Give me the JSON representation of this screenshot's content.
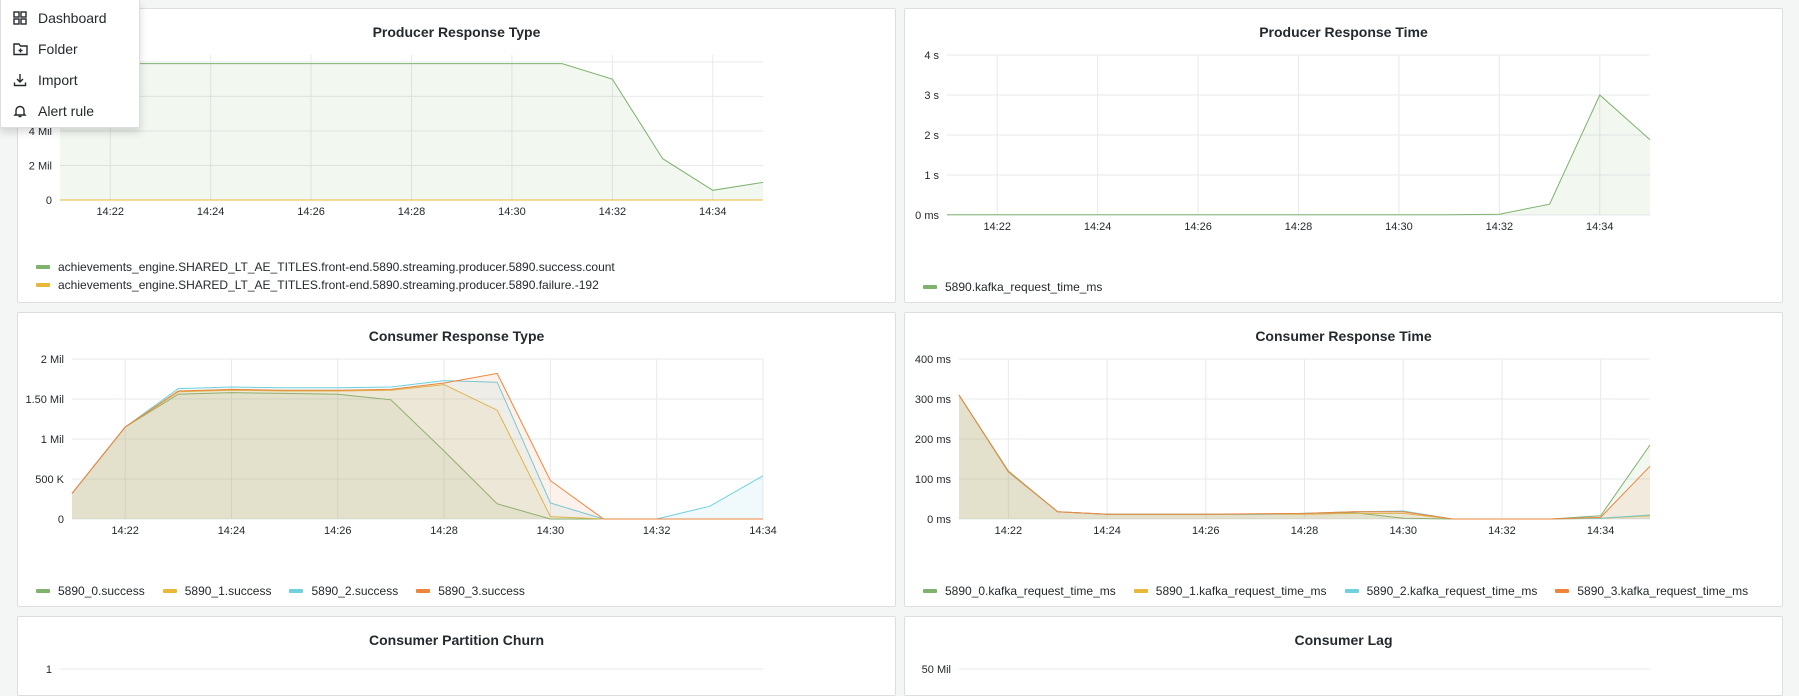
{
  "menu": {
    "items": [
      {
        "label": "Dashboard",
        "icon": "apps-icon"
      },
      {
        "label": "Folder",
        "icon": "folder-plus-icon"
      },
      {
        "label": "Import",
        "icon": "import-icon"
      },
      {
        "label": "Alert rule",
        "icon": "bell-icon"
      }
    ]
  },
  "panels": {
    "producer_response_type": {
      "title": "Producer Response Type"
    },
    "producer_response_time": {
      "title": "Producer Response Time"
    },
    "consumer_response_type": {
      "title": "Consumer Response Type"
    },
    "consumer_response_time": {
      "title": "Consumer Response Time"
    },
    "consumer_partition_churn": {
      "title": "Consumer Partition Churn"
    },
    "consumer_lag": {
      "title": "Consumer Lag"
    }
  },
  "colors": {
    "green": "#7eb26d",
    "yellow": "#eab839",
    "cyan": "#6ed0e0",
    "orange": "#ef843c"
  },
  "chart_data": [
    {
      "id": "producer_response_type",
      "type": "area",
      "title": "Producer Response Type",
      "x": [
        "14:21",
        "14:22",
        "14:23",
        "14:24",
        "14:25",
        "14:26",
        "14:27",
        "14:28",
        "14:29",
        "14:30",
        "14:31",
        "14:32",
        "14:33",
        "14:34",
        "14:35"
      ],
      "xticks": [
        "14:22",
        "14:24",
        "14:26",
        "14:28",
        "14:30",
        "14:32",
        "14:34"
      ],
      "yticks": [
        "0",
        "2 Mil",
        "4 Mil"
      ],
      "ylim": [
        0,
        8400000
      ],
      "series": [
        {
          "name": "achievements_engine.SHARED_LT_AE_TITLES.front-end.5890.streaming.producer.5890.success.count",
          "color": "#7eb26d",
          "values": [
            7900000,
            7900000,
            7900000,
            7900000,
            7900000,
            7900000,
            7900000,
            7900000,
            7900000,
            7900000,
            7900000,
            7000000,
            2400000,
            560000,
            1020000
          ]
        },
        {
          "name": "achievements_engine.SHARED_LT_AE_TITLES.front-end.5890.streaming.producer.5890.failure.-192",
          "color": "#eab839",
          "values": [
            0,
            0,
            0,
            0,
            0,
            0,
            0,
            0,
            0,
            0,
            0,
            0,
            0,
            0,
            0
          ]
        }
      ]
    },
    {
      "id": "producer_response_time",
      "type": "area",
      "title": "Producer Response Time",
      "x": [
        "14:21",
        "14:22",
        "14:23",
        "14:24",
        "14:25",
        "14:26",
        "14:27",
        "14:28",
        "14:29",
        "14:30",
        "14:31",
        "14:32",
        "14:33",
        "14:34",
        "14:35"
      ],
      "xticks": [
        "14:22",
        "14:24",
        "14:26",
        "14:28",
        "14:30",
        "14:32",
        "14:34"
      ],
      "yticks": [
        "0 ms",
        "1 s",
        "2 s",
        "3 s",
        "4 s"
      ],
      "ylim": [
        0,
        4000
      ],
      "series": [
        {
          "name": "5890.kafka_request_time_ms",
          "color": "#7eb26d",
          "values": [
            8,
            8,
            8,
            8,
            8,
            8,
            8,
            8,
            8,
            8,
            8,
            20,
            270,
            3000,
            1880
          ]
        }
      ]
    },
    {
      "id": "consumer_response_type",
      "type": "area",
      "title": "Consumer Response Type",
      "x": [
        "14:21",
        "14:22",
        "14:23",
        "14:24",
        "14:25",
        "14:26",
        "14:27",
        "14:28",
        "14:29",
        "14:30",
        "14:31",
        "14:32",
        "14:33",
        "14:34"
      ],
      "xticks": [
        "14:22",
        "14:24",
        "14:26",
        "14:28",
        "14:30",
        "14:32",
        "14:34"
      ],
      "yticks": [
        "0",
        "500 K",
        "1 Mil",
        "1.50 Mil",
        "2 Mil"
      ],
      "ylim": [
        0,
        2000000
      ],
      "series": [
        {
          "name": "5890_0.success",
          "color": "#7eb26d",
          "values": [
            320000,
            1150000,
            1560000,
            1580000,
            1570000,
            1560000,
            1490000,
            850000,
            190000,
            0,
            0,
            0,
            0,
            0
          ]
        },
        {
          "name": "5890_1.success",
          "color": "#eab839",
          "values": [
            320000,
            1150000,
            1590000,
            1610000,
            1600000,
            1600000,
            1610000,
            1680000,
            1360000,
            30000,
            0,
            0,
            0,
            0
          ]
        },
        {
          "name": "5890_2.success",
          "color": "#6ed0e0",
          "values": [
            320000,
            1150000,
            1630000,
            1650000,
            1640000,
            1640000,
            1650000,
            1730000,
            1710000,
            200000,
            0,
            0,
            160000,
            540000
          ]
        },
        {
          "name": "5890_3.success",
          "color": "#ef843c",
          "values": [
            320000,
            1150000,
            1600000,
            1620000,
            1610000,
            1610000,
            1620000,
            1700000,
            1820000,
            480000,
            0,
            0,
            0,
            0
          ]
        }
      ]
    },
    {
      "id": "consumer_response_time",
      "type": "area",
      "title": "Consumer Response Time",
      "x": [
        "14:21",
        "14:22",
        "14:23",
        "14:24",
        "14:25",
        "14:26",
        "14:27",
        "14:28",
        "14:29",
        "14:30",
        "14:31",
        "14:32",
        "14:33",
        "14:34",
        "14:35"
      ],
      "xticks": [
        "14:22",
        "14:24",
        "14:26",
        "14:28",
        "14:30",
        "14:32",
        "14:34"
      ],
      "yticks": [
        "0 ms",
        "100 ms",
        "200 ms",
        "300 ms",
        "400 ms"
      ],
      "ylim": [
        0,
        400
      ],
      "series": [
        {
          "name": "5890_0.kafka_request_time_ms",
          "color": "#7eb26d",
          "values": [
            310,
            120,
            18,
            12,
            12,
            12,
            12,
            14,
            16,
            2,
            0,
            0,
            0,
            8,
            185
          ]
        },
        {
          "name": "5890_1.kafka_request_time_ms",
          "color": "#eab839",
          "values": [
            310,
            118,
            18,
            12,
            12,
            12,
            12,
            12,
            14,
            14,
            0,
            0,
            0,
            2,
            8
          ]
        },
        {
          "name": "5890_2.kafka_request_time_ms",
          "color": "#6ed0e0",
          "values": [
            310,
            118,
            18,
            12,
            12,
            12,
            12,
            14,
            18,
            20,
            0,
            0,
            0,
            2,
            10
          ]
        },
        {
          "name": "5890_3.kafka_request_time_ms",
          "color": "#ef843c",
          "values": [
            310,
            118,
            18,
            12,
            12,
            12,
            13,
            14,
            18,
            18,
            0,
            0,
            0,
            4,
            132
          ]
        }
      ]
    },
    {
      "id": "consumer_partition_churn",
      "type": "line",
      "title": "Consumer Partition Churn",
      "yticks": [
        "1"
      ],
      "series": []
    },
    {
      "id": "consumer_lag",
      "type": "line",
      "title": "Consumer Lag",
      "yticks": [
        "50 Mil"
      ],
      "series": []
    }
  ]
}
